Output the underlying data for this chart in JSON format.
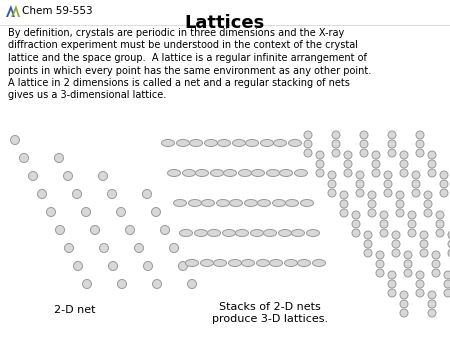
{
  "title": "Lattices",
  "header": "Chem 59-553",
  "body_text": "By definition, crystals are periodic in three dimensions and the X-ray diffraction experiment must be understood in the context of the crystal lattice and the space group.  A lattice is a regular infinite arrangement of points in which every point has the same environment as any other point. A lattice in 2 dimensions is called a net and a regular stacking of nets gives us a 3-dimensional lattice.",
  "label_2d": "2-D net",
  "label_3d": "Stacks of 2-D nets\nproduce 3-D lattices.",
  "bg_color": "#ffffff",
  "dot_fill": "#d8d8d8",
  "dot_edge": "#999999",
  "title_color": "#000000",
  "text_color": "#000000",
  "logo_blue": "#3355aa",
  "logo_green": "#88aa33",
  "logo_yellow": "#ddaa00",
  "figsize": [
    4.5,
    3.38
  ],
  "dpi": 100
}
